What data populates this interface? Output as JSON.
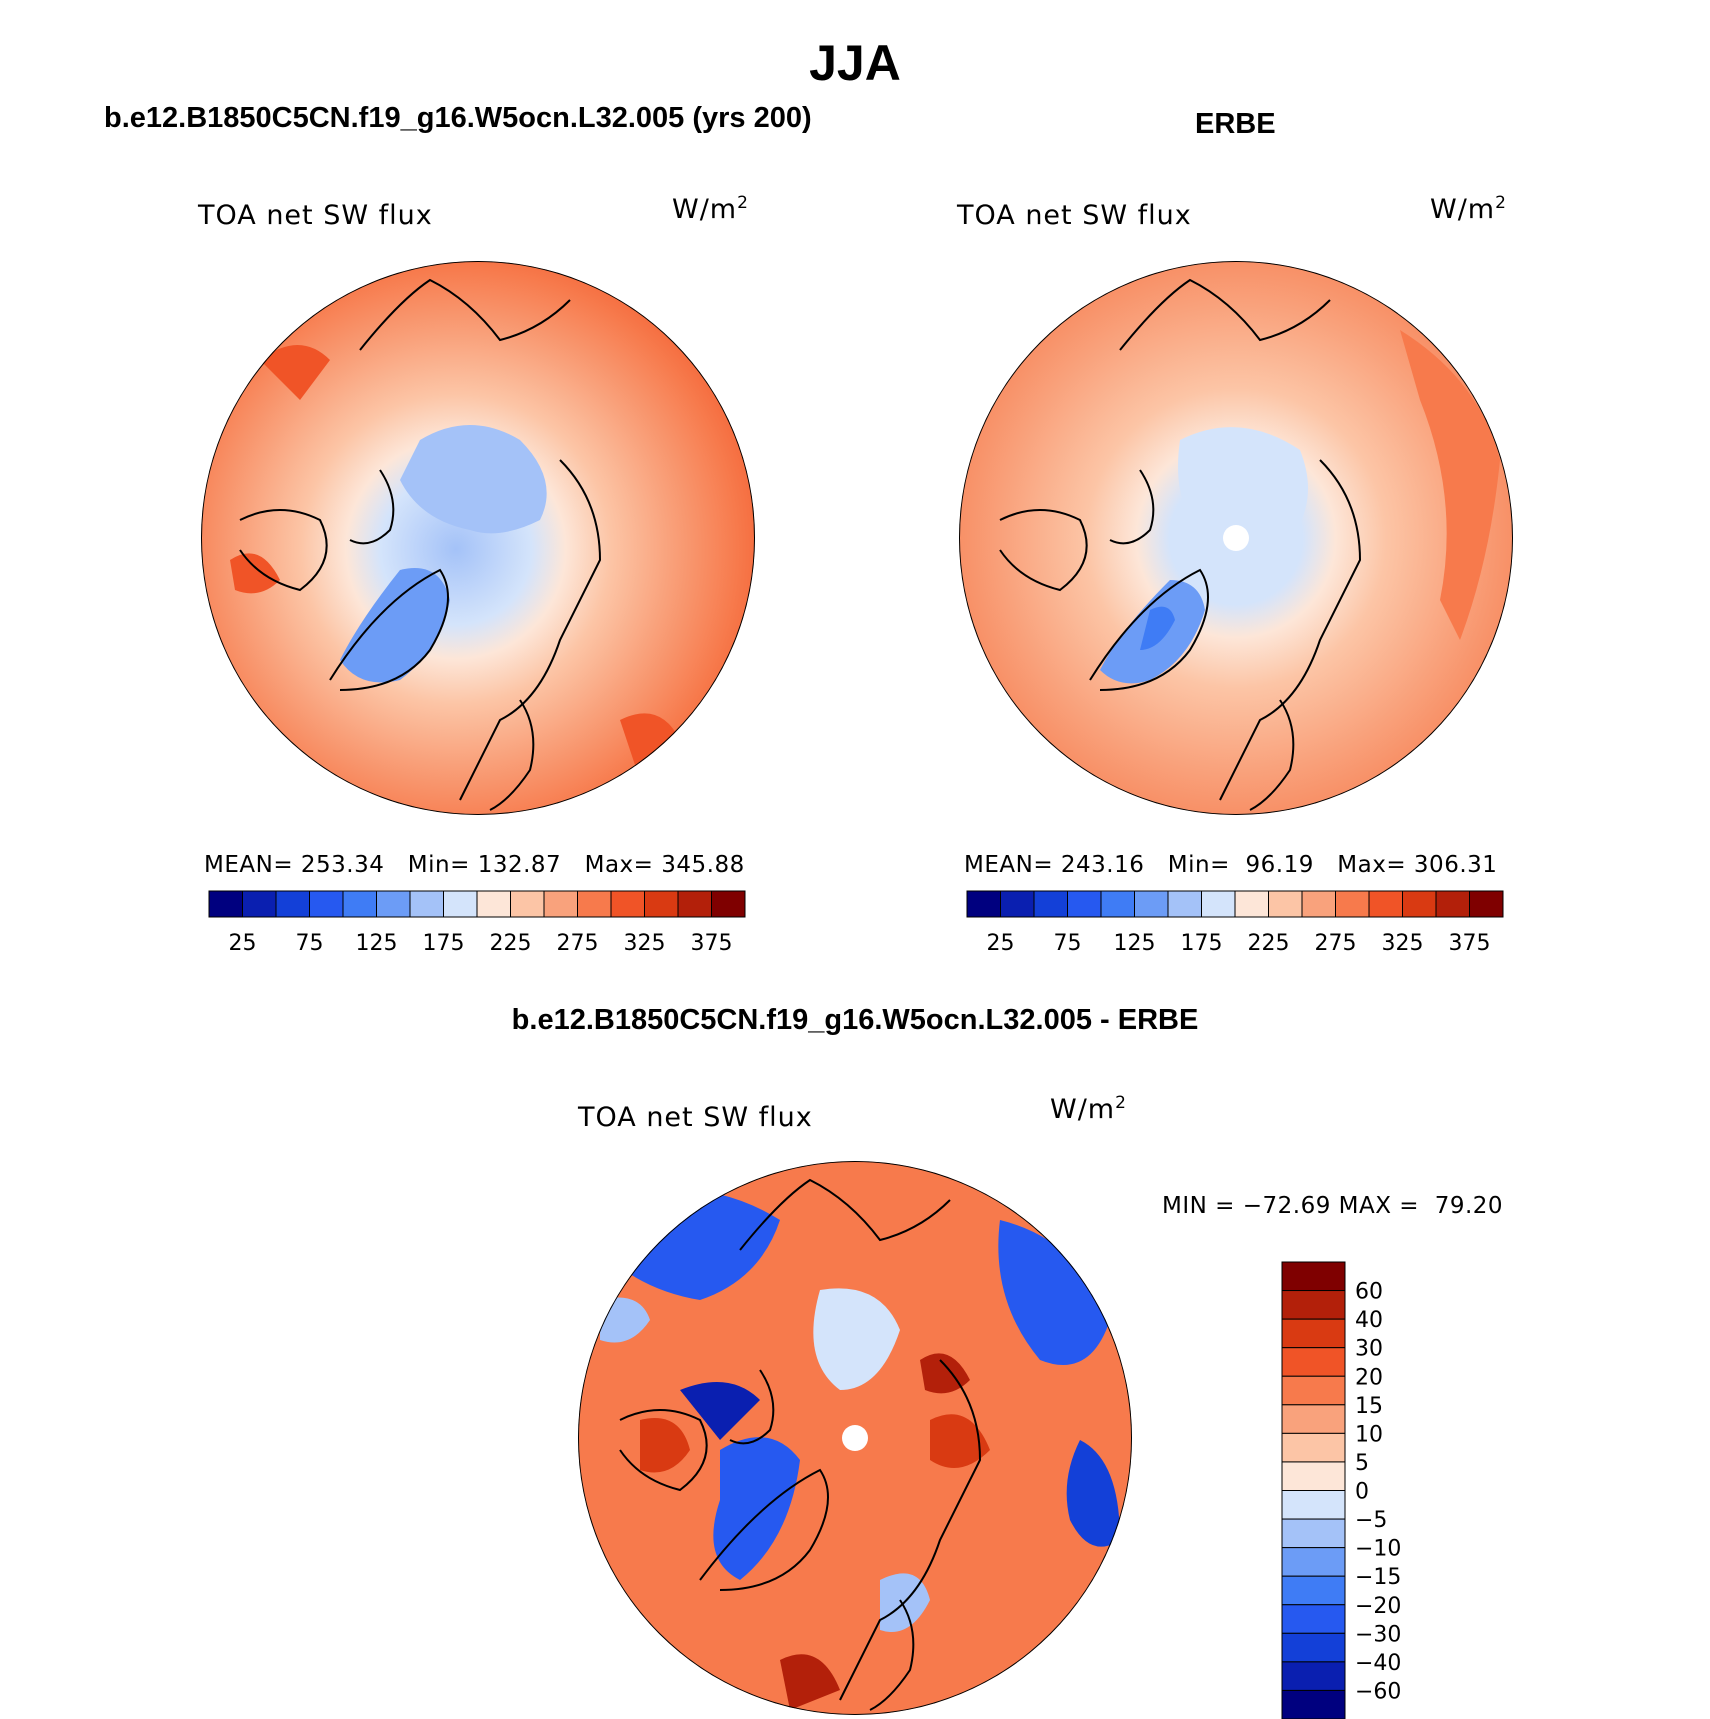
{
  "title": "JJA",
  "panels": [
    {
      "case": "b.e12.B1850C5CN.f19_g16.W5ocn.L32.005 (yrs 200)",
      "variable": "TOA net SW flux",
      "units_base": "W/m",
      "units_exp": "2",
      "stats": "MEAN= 253.34   Min= 132.87   Max= 345.88"
    },
    {
      "case": "ERBE",
      "variable": "TOA net SW flux",
      "units_base": "W/m",
      "units_exp": "2",
      "stats": "MEAN= 243.16   Min=  96.19   Max= 306.31"
    }
  ],
  "difference": {
    "title": "b.e12.B1850C5CN.f19_g16.W5ocn.L32.005 - ERBE",
    "variable": "TOA net SW flux",
    "units_base": "W/m",
    "units_exp": "2",
    "stats": "MIN = −72.69 MAX =  79.20"
  },
  "chart_data": [
    {
      "type": "heatmap",
      "projection": "north polar stereographic",
      "title": "b.e12.B1850C5CN.f19_g16.W5ocn.L32.005 (yrs 200)",
      "variable": "TOA net SW flux",
      "units": "W/m2",
      "mean": 253.34,
      "min": 132.87,
      "max": 345.88,
      "colorbar_levels": [
        25,
        50,
        75,
        100,
        125,
        150,
        175,
        200,
        225,
        250,
        275,
        300,
        325,
        350,
        375
      ],
      "colorbar_labels": [
        "25",
        "75",
        "125",
        "175",
        "225",
        "275",
        "325",
        "375"
      ]
    },
    {
      "type": "heatmap",
      "projection": "north polar stereographic",
      "title": "ERBE",
      "variable": "TOA net SW flux",
      "units": "W/m2",
      "mean": 243.16,
      "min": 96.19,
      "max": 306.31,
      "colorbar_levels": [
        25,
        50,
        75,
        100,
        125,
        150,
        175,
        200,
        225,
        250,
        275,
        300,
        325,
        350,
        375
      ],
      "colorbar_labels": [
        "25",
        "75",
        "125",
        "175",
        "225",
        "275",
        "325",
        "375"
      ]
    },
    {
      "type": "heatmap",
      "projection": "north polar stereographic",
      "title": "b.e12.B1850C5CN.f19_g16.W5ocn.L32.005 - ERBE",
      "variable": "TOA net SW flux",
      "units": "W/m2",
      "min": -72.69,
      "max": 79.2,
      "colorbar_labels": [
        "60",
        "40",
        "30",
        "20",
        "15",
        "10",
        "5",
        "0",
        "−5",
        "−10",
        "−15",
        "−20",
        "−30",
        "−40",
        "−60"
      ]
    }
  ],
  "colors": {
    "abs_bins": [
      "#00007f",
      "#0a1fb0",
      "#1340d8",
      "#2659f0",
      "#3f7cf5",
      "#6c9cf6",
      "#a4c2f8",
      "#d4e4fb",
      "#fde6d8",
      "#fcc5a6",
      "#f9a27c",
      "#f77a4c",
      "#f05427",
      "#d93a12",
      "#b3200a",
      "#7f0000"
    ],
    "diff_bins": [
      "#7f0000",
      "#b3200a",
      "#d93a12",
      "#f05427",
      "#f77a4c",
      "#f9a27c",
      "#fcc5a6",
      "#fde6d8",
      "#d4e4fb",
      "#a4c2f8",
      "#6c9cf6",
      "#3f7cf5",
      "#2659f0",
      "#1340d8",
      "#0a1fb0",
      "#00007f"
    ]
  }
}
